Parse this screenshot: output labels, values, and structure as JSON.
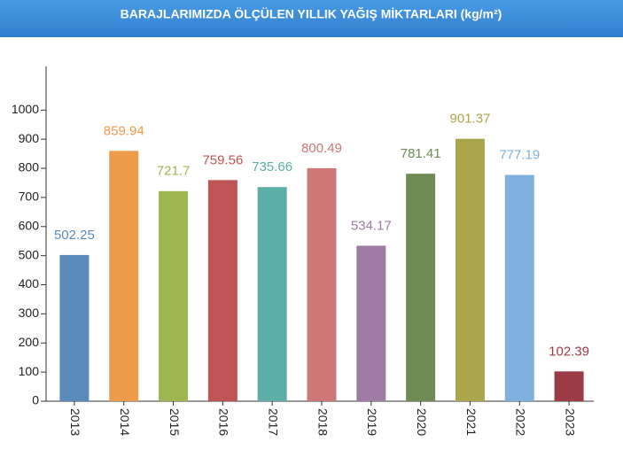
{
  "chart_data": {
    "type": "bar",
    "title": "BARAJLARIMIZDA ÖLÇÜLEN YILLIK YAĞIŞ MİKTARLARI (kg/m²)",
    "categories": [
      "2013",
      "2014",
      "2015",
      "2016",
      "2017",
      "2018",
      "2019",
      "2020",
      "2021",
      "2022",
      "2023"
    ],
    "values": [
      502.25,
      859.94,
      721.7,
      759.56,
      735.66,
      800.49,
      534.17,
      781.41,
      901.37,
      777.19,
      102.39
    ],
    "colors": [
      "#5b8bbb",
      "#ee9b4b",
      "#9db64f",
      "#bf5455",
      "#5daea9",
      "#cd7777",
      "#a07ba6",
      "#6f8b55",
      "#aaa64b",
      "#7fb0de",
      "#9c3b45"
    ],
    "ylim": [
      0,
      1150
    ],
    "yticks": [
      0,
      100,
      200,
      300,
      400,
      500,
      600,
      700,
      800,
      900,
      1000
    ],
    "grid": false
  }
}
